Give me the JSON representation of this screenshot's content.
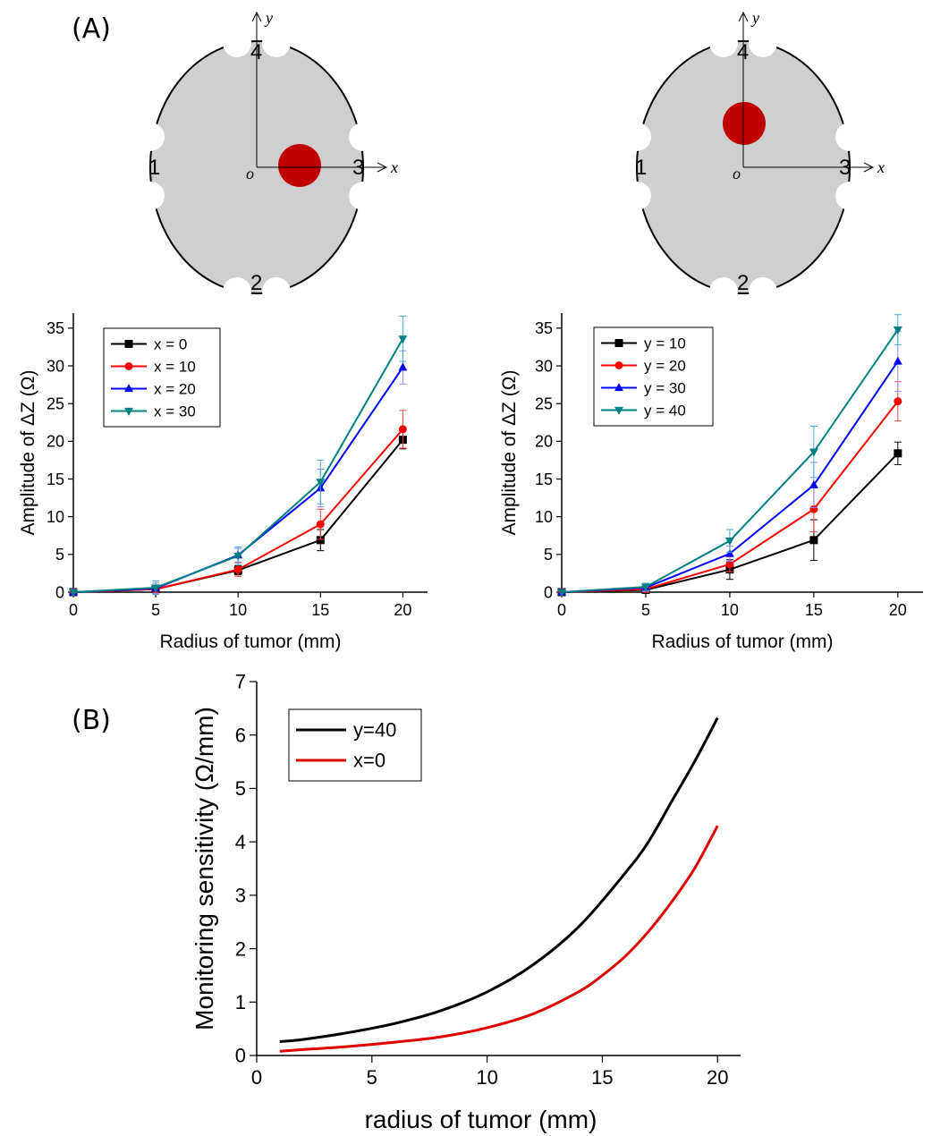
{
  "panels": {
    "a_label": "(A)",
    "b_label": "(B)"
  },
  "diagrams": [
    {
      "electrodes": [
        "1",
        "2",
        "3",
        "4"
      ],
      "axes": {
        "x": "x",
        "y": "y",
        "origin": "o"
      },
      "tumor_color": "#c00000"
    },
    {
      "electrodes": [
        "1",
        "2",
        "3",
        "4"
      ],
      "axes": {
        "x": "x",
        "y": "y",
        "origin": "o"
      },
      "tumor_color": "#c00000"
    }
  ],
  "chart_data": [
    {
      "type": "line",
      "xlabel": "Radius of tumor (mm)",
      "ylabel": "Amplitude of ΔZ (Ω)",
      "x": [
        0,
        5,
        10,
        15,
        20
      ],
      "xlim": [
        0,
        21.5
      ],
      "ylim": [
        0,
        37
      ],
      "xticks": [
        "0",
        "5",
        "10",
        "15",
        "20"
      ],
      "yticks": [
        "0",
        "5",
        "10",
        "15",
        "20",
        "25",
        "30",
        "35"
      ],
      "legend_position": "top-left",
      "series": [
        {
          "name": "x = 0",
          "color": "#000000",
          "marker": "square",
          "values": [
            0,
            0.4,
            2.9,
            6.9,
            20.2
          ],
          "errors": [
            0,
            0.3,
            0.6,
            1.4,
            1.2
          ]
        },
        {
          "name": "x = 10",
          "color": "#ff0000",
          "marker": "circle",
          "values": [
            0,
            0.4,
            3.0,
            9.0,
            21.6
          ],
          "errors": [
            0,
            0.5,
            0.9,
            2.0,
            2.5
          ]
        },
        {
          "name": "x = 20",
          "color": "#0000ff",
          "marker": "triangle-up",
          "values": [
            0,
            0.5,
            4.9,
            13.8,
            29.8
          ],
          "errors": [
            0,
            0.7,
            0.9,
            2.5,
            2.2
          ]
        },
        {
          "name": "x = 30",
          "color": "#008080",
          "marker": "triangle-down",
          "values": [
            0,
            0.6,
            4.8,
            14.6,
            33.6
          ],
          "errors": [
            0,
            0.9,
            1.2,
            2.9,
            3.0
          ]
        }
      ]
    },
    {
      "type": "line",
      "xlabel": "Radius of tumor (mm)",
      "ylabel": "Amplitude of ΔZ (Ω)",
      "x": [
        0,
        5,
        10,
        15,
        20
      ],
      "xlim": [
        0,
        21.5
      ],
      "ylim": [
        0,
        37
      ],
      "xticks": [
        "0",
        "5",
        "10",
        "15",
        "20"
      ],
      "yticks": [
        "0",
        "5",
        "10",
        "15",
        "20",
        "25",
        "30",
        "35"
      ],
      "legend_position": "top-left",
      "series": [
        {
          "name": "y = 10",
          "color": "#000000",
          "marker": "square",
          "values": [
            0,
            0.3,
            3.0,
            6.9,
            18.4
          ],
          "errors": [
            0,
            0.3,
            1.3,
            2.7,
            1.5
          ]
        },
        {
          "name": "y = 20",
          "color": "#ff0000",
          "marker": "circle",
          "values": [
            0,
            0.4,
            3.7,
            11.0,
            25.3
          ],
          "errors": [
            0,
            0.4,
            1.0,
            3.0,
            2.6
          ]
        },
        {
          "name": "y = 30",
          "color": "#0000ff",
          "marker": "triangle-up",
          "values": [
            0,
            0.6,
            5.1,
            14.2,
            30.6
          ],
          "errors": [
            0,
            0.5,
            1.0,
            3.0,
            4.0
          ]
        },
        {
          "name": "y = 40",
          "color": "#008080",
          "marker": "triangle-down",
          "values": [
            0,
            0.7,
            6.8,
            18.6,
            34.8
          ],
          "errors": [
            0,
            0.5,
            1.5,
            3.4,
            2.0
          ]
        }
      ]
    },
    {
      "type": "line",
      "xlabel": "radius of tumor (mm)",
      "ylabel": "Monitoring sensitivity (Ω/mm)",
      "xlim": [
        0,
        21
      ],
      "ylim": [
        0,
        7
      ],
      "xticks": [
        "0",
        "5",
        "10",
        "15",
        "20"
      ],
      "yticks": [
        "0",
        "1",
        "2",
        "3",
        "4",
        "5",
        "6",
        "7"
      ],
      "legend_position": "top-left",
      "series": [
        {
          "name": "y=40",
          "color": "#000000",
          "x": [
            1,
            2,
            4,
            6,
            8,
            10,
            12,
            14,
            16,
            17,
            18,
            19,
            20
          ],
          "values": [
            0.26,
            0.3,
            0.43,
            0.6,
            0.84,
            1.19,
            1.7,
            2.42,
            3.42,
            4.0,
            4.75,
            5.5,
            6.32
          ]
        },
        {
          "name": "x=0",
          "color": "#e00000",
          "x": [
            1,
            2,
            4,
            6,
            8,
            10,
            12,
            14,
            15,
            16,
            17,
            18,
            19,
            20
          ],
          "values": [
            0.08,
            0.11,
            0.17,
            0.25,
            0.35,
            0.52,
            0.78,
            1.2,
            1.5,
            1.86,
            2.32,
            2.87,
            3.5,
            4.3
          ]
        }
      ]
    }
  ]
}
